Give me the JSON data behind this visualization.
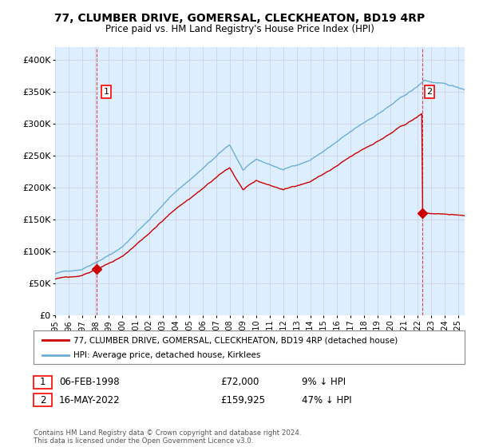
{
  "title": "77, CLUMBER DRIVE, GOMERSAL, CLECKHEATON, BD19 4RP",
  "subtitle": "Price paid vs. HM Land Registry's House Price Index (HPI)",
  "ylabel_ticks": [
    "£0",
    "£50K",
    "£100K",
    "£150K",
    "£200K",
    "£250K",
    "£300K",
    "£350K",
    "£400K"
  ],
  "ytick_values": [
    0,
    50000,
    100000,
    150000,
    200000,
    250000,
    300000,
    350000,
    400000
  ],
  "ylim": [
    0,
    420000
  ],
  "xlim_start": 1995.0,
  "xlim_end": 2025.5,
  "hpi_color": "#6baed6",
  "price_color": "#cc0000",
  "plot_bg_color": "#ddeeff",
  "t1": 1998.097,
  "t2": 2022.374,
  "p1": 72000,
  "p2": 159925,
  "annotation1": {
    "label": "1",
    "date": "06-FEB-1998",
    "price": "£72,000",
    "hpi_pct": "9% ↓ HPI"
  },
  "annotation2": {
    "label": "2",
    "date": "16-MAY-2022",
    "price": "£159,925",
    "hpi_pct": "47% ↓ HPI"
  },
  "legend_line1": "77, CLUMBER DRIVE, GOMERSAL, CLECKHEATON, BD19 4RP (detached house)",
  "legend_line2": "HPI: Average price, detached house, Kirklees",
  "footer": "Contains HM Land Registry data © Crown copyright and database right 2024.\nThis data is licensed under the Open Government Licence v3.0.",
  "background_color": "#ffffff",
  "grid_color": "#ccccdd"
}
